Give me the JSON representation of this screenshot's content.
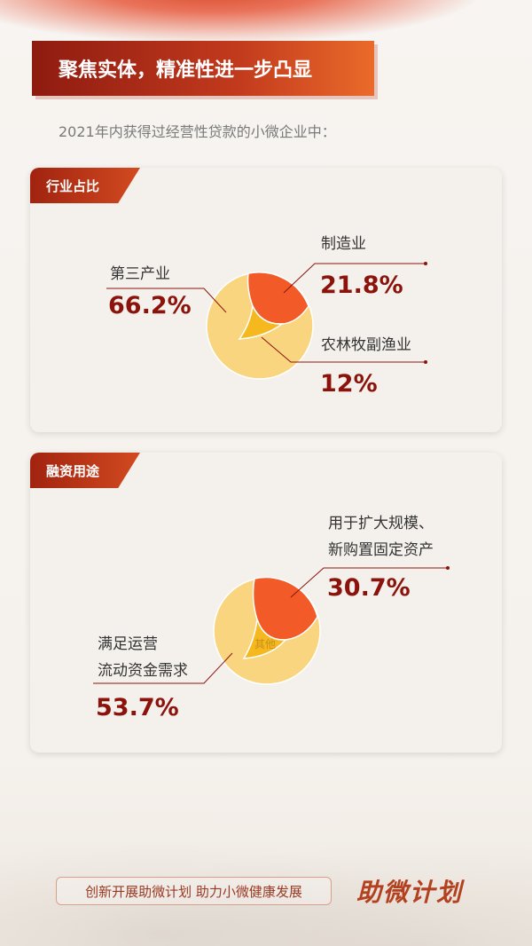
{
  "banner": {
    "title": "聚焦实体，精准性进一步凸显"
  },
  "intro": "2021年内获得过经营性贷款的小微企业中：",
  "colors": {
    "main": "#f9d580",
    "orange": "#f25a28",
    "yellow": "#f5b81f",
    "dark_red": "#8b130b"
  },
  "industry": {
    "tag": "行业占比",
    "items": [
      {
        "label": "第三产业",
        "value": "66.2%"
      },
      {
        "label": "制造业",
        "value": "21.8%"
      },
      {
        "label": "农林牧副渔业",
        "value": "12%"
      }
    ]
  },
  "usage": {
    "tag": "融资用途",
    "items": [
      {
        "label_line1": "用于扩大规模、",
        "label_line2": "新购置固定资产",
        "value": "30.7%"
      },
      {
        "label_line1": "满足运营",
        "label_line2": "流动资金需求",
        "value": "53.7%"
      },
      {
        "label": "其他"
      }
    ]
  },
  "footer": {
    "slogan": "创新开展助微计划 助力小微健康发展",
    "logo": "助微计划"
  }
}
